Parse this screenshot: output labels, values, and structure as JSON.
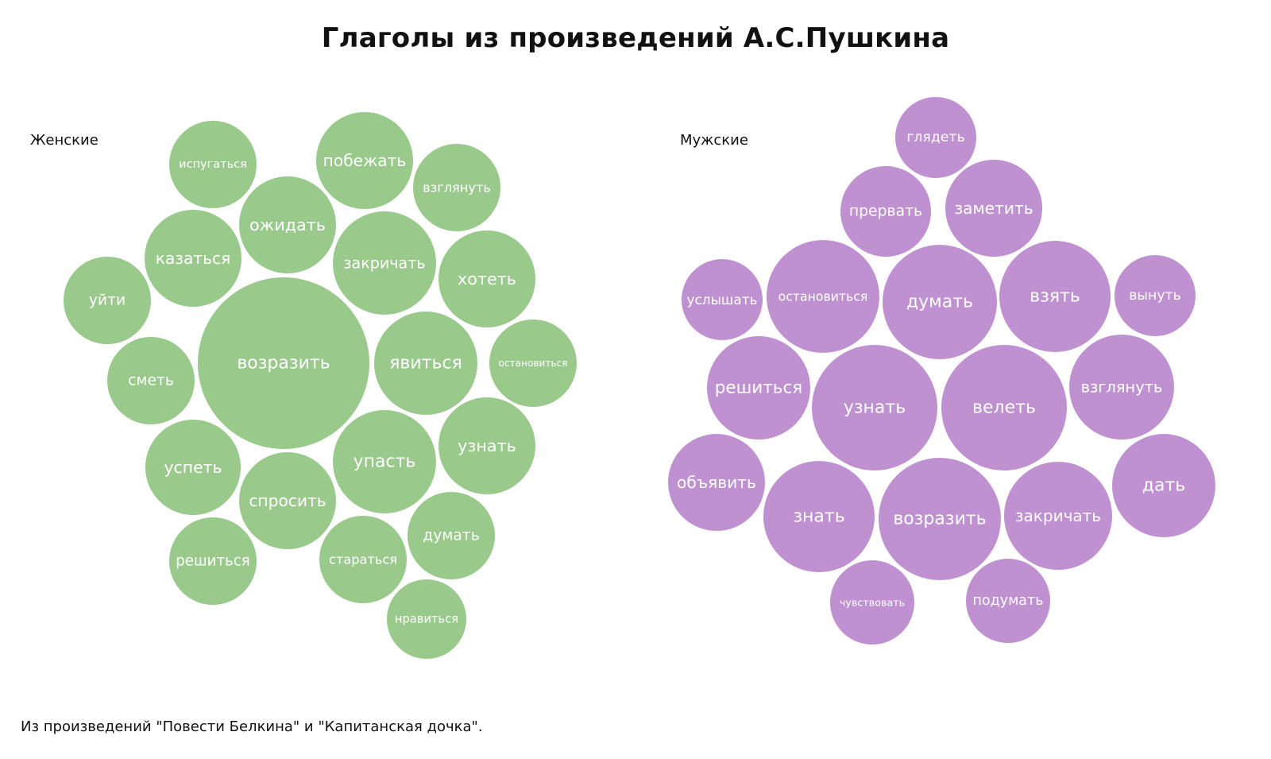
{
  "chart_data": {
    "type": "bubble",
    "title": "Глаголы из произведений А.С.Пушкина",
    "note": "Из произведений \"Повести Белкина\" и \"Капитанская дочка\".",
    "groups": [
      {
        "name": "Женские",
        "color": "#99c98b",
        "words": [
          "возразить",
          "закричать",
          "явиться",
          "упасть",
          "ожидать",
          "побежать",
          "хотеть",
          "узнать",
          "казаться",
          "успеть",
          "спросить",
          "уйти",
          "испугаться",
          "взглянуть",
          "сметь",
          "остановиться",
          "решиться",
          "стараться",
          "думать",
          "нравиться"
        ]
      },
      {
        "name": "Мужские",
        "color": "#bf91d1",
        "words": [
          "узнать",
          "велеть",
          "возразить",
          "думать",
          "остановиться",
          "взять",
          "знать",
          "закричать",
          "решиться",
          "взглянуть",
          "дать",
          "заметить",
          "объявить",
          "прервать",
          "вынуть",
          "услышать",
          "глядеть",
          "чувствовать",
          "подумать"
        ]
      }
    ]
  }
}
